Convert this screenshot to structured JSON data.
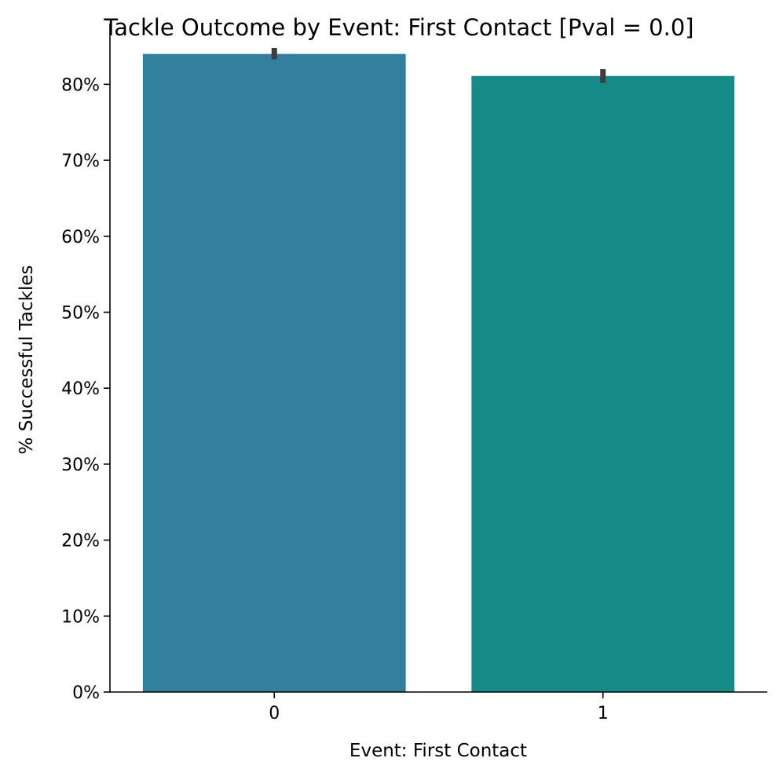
{
  "chart_data": {
    "type": "bar",
    "title": "Tackle Outcome by Event: First Contact [Pval = 0.0]",
    "xlabel": "Event: First Contact",
    "ylabel": "% Successful Tackles",
    "categories": [
      "0",
      "1"
    ],
    "values": [
      84.0,
      81.1
    ],
    "error_bars": [
      {
        "low": 83.3,
        "high": 84.8
      },
      {
        "low": 80.2,
        "high": 82.0
      }
    ],
    "ylim": [
      0,
      88
    ],
    "yticks": [
      0,
      10,
      20,
      30,
      40,
      50,
      60,
      70,
      80
    ],
    "ytick_labels": [
      "0%",
      "10%",
      "20%",
      "30%",
      "40%",
      "50%",
      "60%",
      "70%",
      "80%"
    ],
    "colors": [
      "#32809E",
      "#168A86"
    ],
    "errorbar_color": "#3d3d3d",
    "grid": false,
    "legend": "none"
  }
}
